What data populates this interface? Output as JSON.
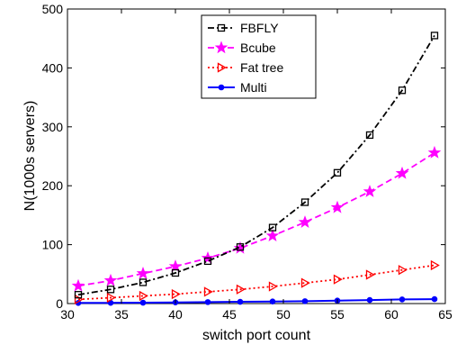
{
  "chart_data": {
    "type": "line",
    "title": "",
    "xlabel": "switch port count",
    "ylabel": "N(1000s servers)",
    "xlim": [
      30,
      65
    ],
    "ylim": [
      0,
      500
    ],
    "x_ticks": [
      30,
      35,
      40,
      45,
      50,
      55,
      60,
      65
    ],
    "y_ticks": [
      0,
      100,
      200,
      300,
      400,
      500
    ],
    "grid": false,
    "legend_position": "top-right",
    "series": [
      {
        "name": "FBFLY",
        "color": "#000000",
        "line_style": "dash-dot",
        "marker": "square",
        "x": [
          31,
          34,
          37,
          40,
          43,
          46,
          49,
          52,
          55,
          58,
          61,
          64
        ],
        "y": [
          15,
          24,
          36,
          52,
          72,
          96,
          129,
          172,
          222,
          286,
          362,
          455
        ]
      },
      {
        "name": "Bcube",
        "color": "#ff00ff",
        "line_style": "dashed",
        "marker": "star",
        "x": [
          31,
          34,
          37,
          40,
          43,
          46,
          49,
          52,
          55,
          58,
          61,
          64
        ],
        "y": [
          30,
          39,
          51,
          63,
          77,
          94,
          115,
          138,
          163,
          190,
          221,
          256
        ]
      },
      {
        "name": "Fat tree",
        "color": "#ff0000",
        "line_style": "dotted",
        "marker": "triangle-right",
        "x": [
          31,
          34,
          37,
          40,
          43,
          46,
          49,
          52,
          55,
          58,
          61,
          64
        ],
        "y": [
          7,
          10,
          13,
          16,
          20,
          24,
          29,
          35,
          41,
          49,
          57,
          65
        ]
      },
      {
        "name": "Multi",
        "color": "#0000ff",
        "line_style": "solid",
        "marker": "circle",
        "x": [
          31,
          34,
          37,
          40,
          43,
          46,
          49,
          52,
          55,
          58,
          61,
          64
        ],
        "y": [
          1,
          1.2,
          1.5,
          2,
          2.5,
          3,
          3.5,
          4,
          5,
          6,
          7,
          7.5
        ]
      }
    ]
  }
}
